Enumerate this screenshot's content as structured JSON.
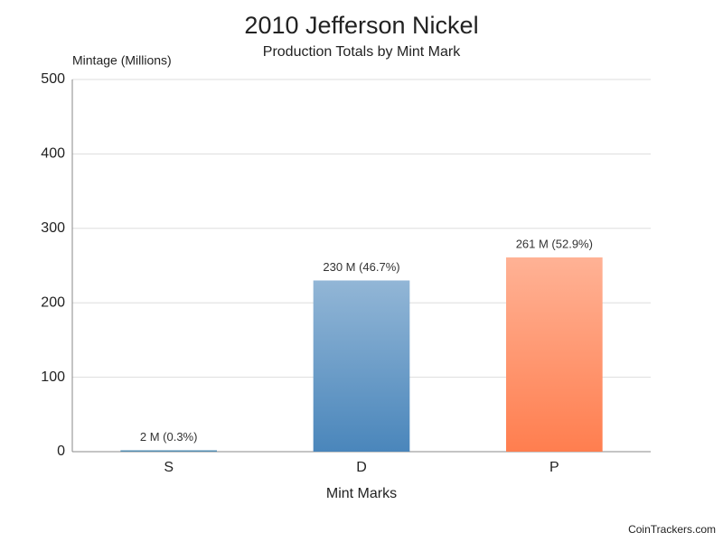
{
  "chart_data": {
    "type": "bar",
    "title": "2010 Jefferson Nickel",
    "subtitle": "Production Totals by Mint Mark",
    "y_label": "Mintage (Millions)",
    "x_label": "Mint Marks",
    "credit": "CoinTrackers.com",
    "categories": [
      "S",
      "D",
      "P"
    ],
    "values": [
      2,
      230,
      261
    ],
    "value_labels": [
      "2 M (0.3%)",
      "230 M (46.7%)",
      "261 M (52.9%)"
    ],
    "colors": [
      "#3b7ea8",
      "#4a86bb",
      "#ff7e4f"
    ],
    "ylim": [
      0,
      500
    ],
    "yticks": [
      0,
      100,
      200,
      300,
      400,
      500
    ],
    "grid": true
  }
}
